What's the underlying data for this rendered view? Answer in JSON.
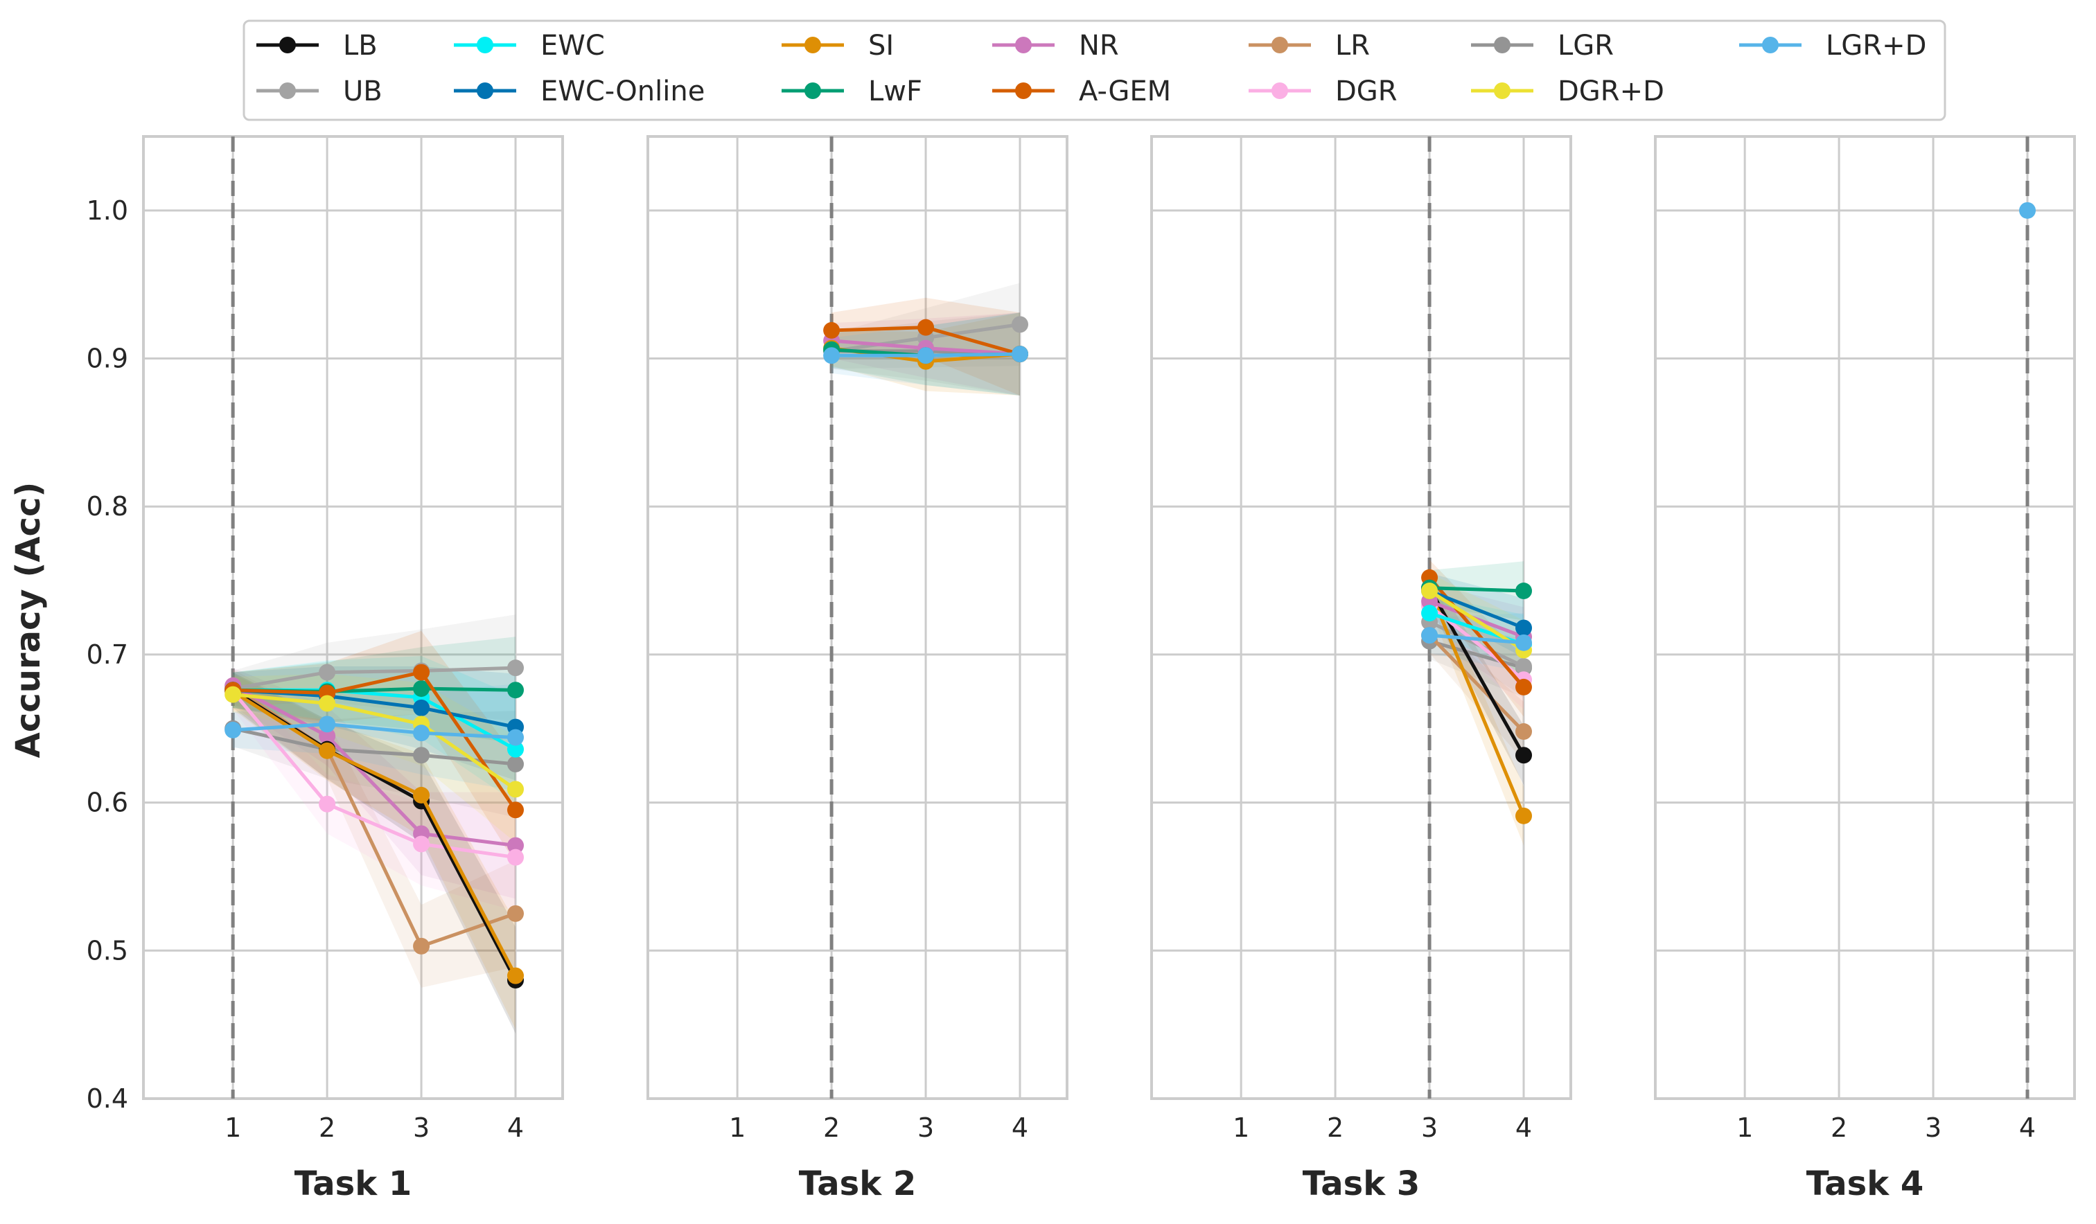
{
  "chart_data": {
    "type": "line",
    "ylabel": "Accuracy (Acc)",
    "ylim": [
      0.4,
      1.05
    ],
    "yticks": [
      "0.4",
      "0.5",
      "0.6",
      "0.7",
      "0.8",
      "0.9",
      "1.0"
    ],
    "x": [
      1,
      2,
      3,
      4
    ],
    "xticks": [
      "1",
      "2",
      "3",
      "4"
    ],
    "grid": true,
    "legend_position": "top",
    "legend": [
      {
        "name": "LB",
        "color": "#111111"
      },
      {
        "name": "UB",
        "color": "#a3a3a3"
      },
      {
        "name": "EWC",
        "color": "#00f0f5"
      },
      {
        "name": "EWC-Online",
        "color": "#0173b2"
      },
      {
        "name": "SI",
        "color": "#de8f05"
      },
      {
        "name": "LwF",
        "color": "#029e73"
      },
      {
        "name": "NR",
        "color": "#cc78bc"
      },
      {
        "name": "A-GEM",
        "color": "#d55e00"
      },
      {
        "name": "LR",
        "color": "#ca9161"
      },
      {
        "name": "DGR",
        "color": "#fbafe4"
      },
      {
        "name": "LGR",
        "color": "#949494"
      },
      {
        "name": "DGR+D",
        "color": "#ece133"
      },
      {
        "name": "LGR+D",
        "color": "#56b4e9"
      }
    ],
    "panels": [
      {
        "xlabel": "Task 1",
        "task_line": 1,
        "series": [
          {
            "name": "UB",
            "x": [
              1,
              2,
              3,
              4
            ],
            "y": [
              0.677,
              0.688,
              0.689,
              0.691
            ]
          },
          {
            "name": "LGR",
            "x": [
              1,
              2,
              3,
              4
            ],
            "y": [
              0.65,
              0.636,
              0.632,
              0.626
            ]
          },
          {
            "name": "LR",
            "x": [
              1,
              2,
              3,
              4
            ],
            "y": [
              0.678,
              0.636,
              0.503,
              0.525
            ]
          },
          {
            "name": "NR",
            "x": [
              1,
              2,
              3,
              4
            ],
            "y": [
              0.679,
              0.645,
              0.579,
              0.571
            ]
          },
          {
            "name": "DGR",
            "x": [
              1,
              2,
              3,
              4
            ],
            "y": [
              0.675,
              0.599,
              0.572,
              0.563
            ]
          },
          {
            "name": "LB",
            "x": [
              1,
              2,
              3,
              4
            ],
            "y": [
              0.676,
              0.636,
              0.601,
              0.48
            ]
          },
          {
            "name": "SI",
            "x": [
              1,
              2,
              3,
              4
            ],
            "y": [
              0.675,
              0.635,
              0.605,
              0.483
            ]
          },
          {
            "name": "EWC",
            "x": [
              1,
              2,
              3,
              4
            ],
            "y": [
              0.676,
              0.676,
              0.671,
              0.636
            ]
          },
          {
            "name": "EWC-Online",
            "x": [
              1,
              2,
              3,
              4
            ],
            "y": [
              0.676,
              0.672,
              0.664,
              0.651
            ]
          },
          {
            "name": "LwF",
            "x": [
              1,
              2,
              3,
              4
            ],
            "y": [
              0.676,
              0.675,
              0.677,
              0.676
            ]
          },
          {
            "name": "A-GEM",
            "x": [
              1,
              2,
              3,
              4
            ],
            "y": [
              0.676,
              0.674,
              0.688,
              0.595
            ]
          },
          {
            "name": "DGR+D",
            "x": [
              1,
              2,
              3,
              4
            ],
            "y": [
              0.673,
              0.667,
              0.653,
              0.609
            ]
          },
          {
            "name": "LGR+D",
            "x": [
              1,
              2,
              3,
              4
            ],
            "y": [
              0.649,
              0.653,
              0.647,
              0.644
            ]
          }
        ]
      },
      {
        "xlabel": "Task 2",
        "task_line": 2,
        "series": [
          {
            "name": "UB",
            "x": [
              2,
              3,
              4
            ],
            "y": [
              0.905,
              0.914,
              0.923
            ]
          },
          {
            "name": "LGR",
            "x": [
              2,
              3,
              4
            ],
            "y": [
              0.905,
              0.905,
              0.903
            ]
          },
          {
            "name": "NR",
            "x": [
              2,
              3,
              4
            ],
            "y": [
              0.912,
              0.907,
              0.903
            ]
          },
          {
            "name": "SI",
            "x": [
              2,
              3,
              4
            ],
            "y": [
              0.907,
              0.898,
              0.903
            ]
          },
          {
            "name": "LwF",
            "x": [
              2,
              3,
              4
            ],
            "y": [
              0.906,
              0.902,
              0.903
            ]
          },
          {
            "name": "A-GEM",
            "x": [
              2,
              3,
              4
            ],
            "y": [
              0.919,
              0.921,
              0.903
            ]
          },
          {
            "name": "LGR+D",
            "x": [
              2,
              3,
              4
            ],
            "y": [
              0.902,
              0.902,
              0.903
            ]
          }
        ]
      },
      {
        "xlabel": "Task 3",
        "task_line": 3,
        "series": [
          {
            "name": "LGR",
            "x": [
              3,
              4
            ],
            "y": [
              0.709,
              0.691
            ]
          },
          {
            "name": "UB",
            "x": [
              3,
              4
            ],
            "y": [
              0.722,
              0.692
            ]
          },
          {
            "name": "LR",
            "x": [
              3,
              4
            ],
            "y": [
              0.713,
              0.648
            ]
          },
          {
            "name": "LB",
            "x": [
              3,
              4
            ],
            "y": [
              0.745,
              0.632
            ]
          },
          {
            "name": "SI",
            "x": [
              3,
              4
            ],
            "y": [
              0.744,
              0.591
            ]
          },
          {
            "name": "DGR",
            "x": [
              3,
              4
            ],
            "y": [
              0.733,
              0.683
            ]
          },
          {
            "name": "NR",
            "x": [
              3,
              4
            ],
            "y": [
              0.736,
              0.712
            ]
          },
          {
            "name": "A-GEM",
            "x": [
              3,
              4
            ],
            "y": [
              0.752,
              0.678
            ]
          },
          {
            "name": "EWC",
            "x": [
              3,
              4
            ],
            "y": [
              0.728,
              0.707
            ]
          },
          {
            "name": "EWC-Online",
            "x": [
              3,
              4
            ],
            "y": [
              0.743,
              0.718
            ]
          },
          {
            "name": "LwF",
            "x": [
              3,
              4
            ],
            "y": [
              0.745,
              0.743
            ]
          },
          {
            "name": "DGR+D",
            "x": [
              3,
              4
            ],
            "y": [
              0.743,
              0.703
            ]
          },
          {
            "name": "LGR+D",
            "x": [
              3,
              4
            ],
            "y": [
              0.713,
              0.708
            ]
          }
        ]
      },
      {
        "xlabel": "Task 4",
        "task_line": 4,
        "series": [
          {
            "name": "LGR+D",
            "x": [
              4
            ],
            "y": [
              1.0
            ]
          }
        ]
      }
    ]
  }
}
